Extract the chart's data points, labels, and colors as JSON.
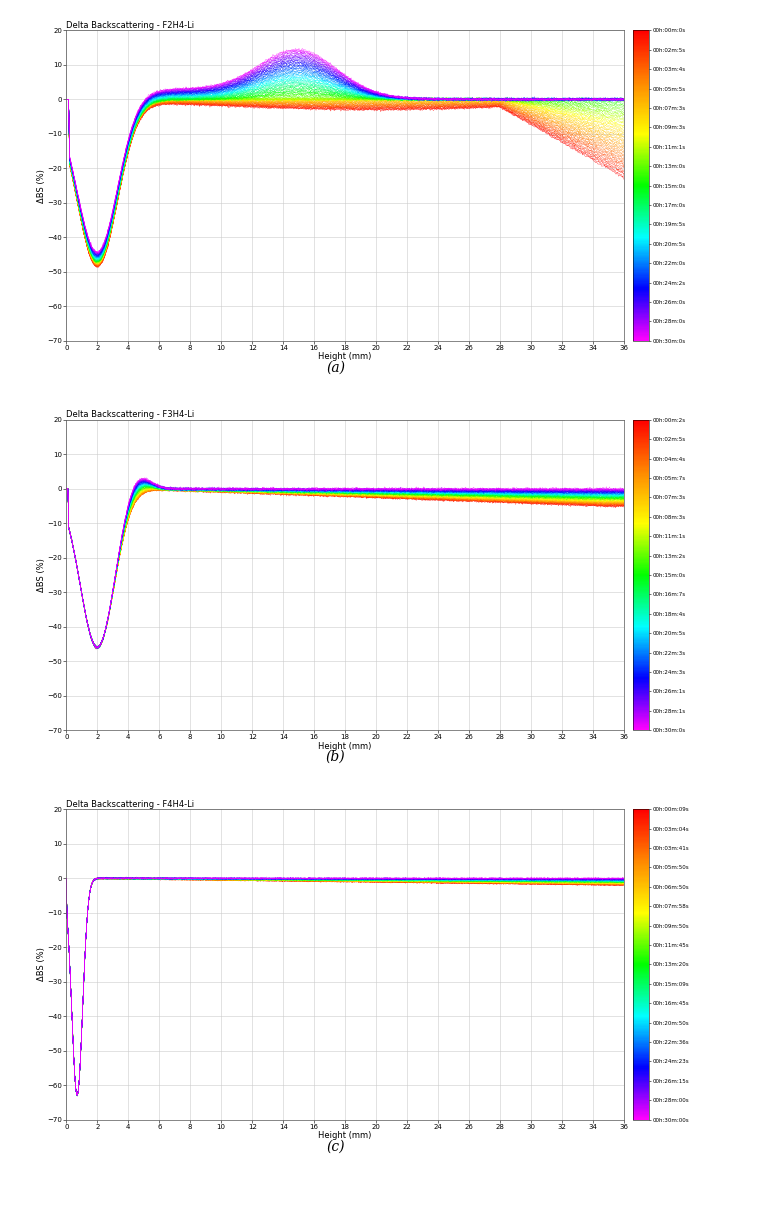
{
  "panels": [
    {
      "title": "Delta Backscattering - F2H4-Li",
      "label": "(a)",
      "ylim": [
        -70,
        20
      ],
      "yticks": [
        -70,
        -60,
        -50,
        -40,
        -30,
        -20,
        -10,
        0,
        10,
        20
      ],
      "xlim": [
        0,
        36
      ],
      "xticks": [
        0,
        2,
        4,
        6,
        8,
        10,
        12,
        14,
        16,
        18,
        20,
        22,
        24,
        26,
        28,
        30,
        32,
        34,
        36
      ],
      "n_curves": 100,
      "curve_type": "F2H4",
      "legend_times": [
        "00h:00m:0s",
        "00h:02m:5s",
        "00h:03m:4s",
        "00h:05m:5s",
        "00h:07m:3s",
        "00h:09m:3s",
        "00h:11m:1s",
        "00h:13m:0s",
        "00h:15m:0s",
        "00h:17m:0s",
        "00h:19m:5s",
        "00h:20m:5s",
        "00h:22m:0s",
        "00h:24m:2s",
        "00h:26m:0s",
        "00h:28m:0s",
        "00h:30m:0s"
      ]
    },
    {
      "title": "Delta Backscattering - F3H4-Li",
      "label": "(b)",
      "ylim": [
        -70,
        20
      ],
      "yticks": [
        -70,
        -60,
        -50,
        -40,
        -30,
        -20,
        -10,
        0,
        10,
        20
      ],
      "xlim": [
        0,
        36
      ],
      "xticks": [
        0,
        2,
        4,
        6,
        8,
        10,
        12,
        14,
        16,
        18,
        20,
        22,
        24,
        26,
        28,
        30,
        32,
        34,
        36
      ],
      "n_curves": 100,
      "curve_type": "F3H4",
      "legend_times": [
        "00h:00m:2s",
        "00h:02m:5s",
        "00h:04m:4s",
        "00h:05m:7s",
        "00h:07m:3s",
        "00h:08m:3s",
        "00h:11m:1s",
        "00h:13m:2s",
        "00h:15m:0s",
        "00h:16m:7s",
        "00h:18m:4s",
        "00h:20m:5s",
        "00h:22m:3s",
        "00h:24m:3s",
        "00h:26m:1s",
        "00h:28m:1s",
        "00h:30m:0s"
      ]
    },
    {
      "title": "Delta Backscattering - F4H4-Li",
      "label": "(c)",
      "ylim": [
        -70,
        20
      ],
      "yticks": [
        -70,
        -60,
        -50,
        -40,
        -30,
        -20,
        -10,
        0,
        10,
        20
      ],
      "xlim": [
        0,
        36
      ],
      "xticks": [
        0,
        2,
        4,
        6,
        8,
        10,
        12,
        14,
        16,
        18,
        20,
        22,
        24,
        26,
        28,
        30,
        32,
        34,
        36
      ],
      "n_curves": 100,
      "curve_type": "F4H4",
      "legend_times": [
        "00h:00m:09s",
        "00h:03m:04s",
        "00h:03m:41s",
        "00h:05m:50s",
        "00h:06m:50s",
        "00h:07m:58s",
        "00h:09m:50s",
        "00h:11m:45s",
        "00h:13m:20s",
        "00h:15m:09s",
        "00h:16m:45s",
        "00h:20m:50s",
        "00h:22m:36s",
        "00h:24m:23s",
        "00h:26m:15s",
        "00h:28m:00s",
        "00h:30m:00s"
      ]
    }
  ],
  "background_color": "#ffffff",
  "grid_color": "#cccccc",
  "title_fontsize": 6,
  "label_fontsize": 6,
  "tick_fontsize": 5,
  "cbar_tick_fontsize": 4,
  "xlabel": "Height (mm)",
  "ylabel": "ΔBS (%)"
}
